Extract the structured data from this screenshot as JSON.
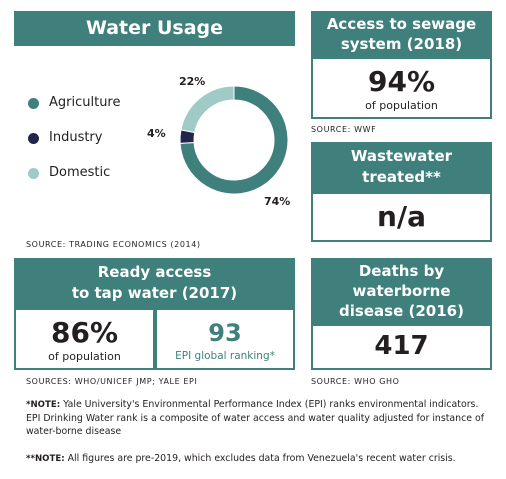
{
  "water_usage": {
    "title": "Water Usage",
    "legend": [
      {
        "label": "Agriculture",
        "color": "#3f7f7c"
      },
      {
        "label": "Industry",
        "color": "#23244b"
      },
      {
        "label": "Domestic",
        "color": "#9fcac5"
      }
    ],
    "source_prefix": "SOURCE:",
    "source": "TRADING ECONOMICS (2014)"
  },
  "chart_data": {
    "type": "pie",
    "categories": [
      "Agriculture",
      "Industry",
      "Domestic"
    ],
    "values": [
      74,
      4,
      22
    ],
    "labels": [
      "74%",
      "4%",
      "22%"
    ],
    "colors": [
      "#3f7f7c",
      "#23244b",
      "#9fcac5"
    ],
    "title": "Water Usage",
    "legend_placement": "left"
  },
  "sewage": {
    "title_line1": "Access to sewage",
    "title_line2": "system (2018)",
    "value": "94%",
    "sub": "of population",
    "source_prefix": "SOURCE:",
    "source": "WWF"
  },
  "wastewater": {
    "title_line1": "Wastewater",
    "title_line2": "treated**",
    "value": "n/a"
  },
  "tap": {
    "title_line1": "Ready access",
    "title_line2": "to tap water (2017)",
    "value": "86%",
    "sub": "of population",
    "rank": "93",
    "rank_sub": "EPI global ranking*",
    "source_prefix": "SOURCES:",
    "source": "WHO/UNICEF JMP; YALE EPI"
  },
  "deaths": {
    "title_line1": "Deaths by",
    "title_line2": "waterborne",
    "title_line3": "disease (2016)",
    "value": "417",
    "source_prefix": "SOURCE:",
    "source": "WHO GHO"
  },
  "notes": {
    "note1_prefix": "*NOTE:",
    "note1": "Yale University's Environmental Performance Index (EPI) ranks environmental indicators. EPI Drinking Water rank is a composite of water access and water quality adjusted for instance of water-borne disease",
    "note2_prefix": "**NOTE:",
    "note2": "All figures are pre-2019, which excludes data from Venezuela's recent water crisis."
  },
  "colors": {
    "accent": "#3f7f7c",
    "dark": "#23244b",
    "light": "#9fcac5"
  }
}
